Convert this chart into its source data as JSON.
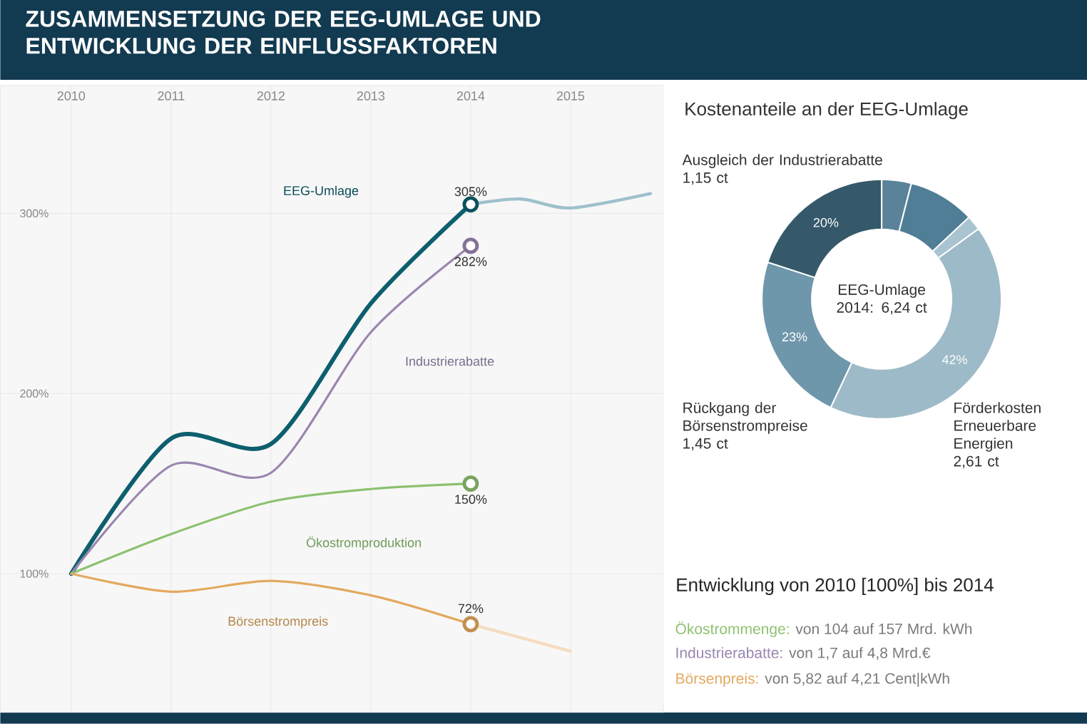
{
  "chart_data": [
    {
      "type": "line",
      "title": "ZUSAMMENSETZUNG DER EEG-UMLAGE UND ENTWICKLUNG DER EINFLUSSFAKTOREN",
      "xlim": [
        2009.29,
        2015.93
      ],
      "ylim": [
        23,
        371
      ],
      "xticks": [
        2010,
        2011,
        2012,
        2013,
        2014,
        2015
      ],
      "yticks": [
        {
          "value": 100,
          "label": "100%"
        },
        {
          "value": 200,
          "label": "200%"
        },
        {
          "value": 300,
          "label": "300%"
        }
      ],
      "grid": true,
      "legend": false,
      "series": [
        {
          "name": "EEG-Umlage",
          "color": "#0d5f6e",
          "x": [
            2010,
            2011,
            2012,
            2013,
            2014
          ],
          "values": [
            100,
            175,
            172,
            250,
            305
          ],
          "value_labels": [
            null,
            null,
            null,
            null,
            "305%"
          ]
        },
        {
          "name": "Industrierabatte",
          "color": "#9a86b0",
          "x": [
            2010,
            2011,
            2012,
            2013,
            2014
          ],
          "values": [
            100,
            160,
            156,
            234,
            282
          ],
          "value_labels": [
            null,
            null,
            null,
            null,
            "282%"
          ]
        },
        {
          "name": "Ökostromproduktion",
          "color": "#8cc16f",
          "x": [
            2010,
            2011,
            2012,
            2013,
            2014
          ],
          "values": [
            100,
            122,
            140,
            147,
            150
          ],
          "value_labels": [
            null,
            null,
            null,
            null,
            "150%"
          ]
        },
        {
          "name": "Börsenstrompreis",
          "color": "#e3a95e",
          "x": [
            2010,
            2011,
            2012,
            2013,
            2014
          ],
          "values": [
            100,
            90,
            96,
            88,
            72
          ],
          "value_labels": [
            null,
            null,
            null,
            null,
            "72%"
          ]
        },
        {
          "color": "#9dc0cc",
          "x": [
            2014,
            2014.5,
            2015,
            2015.8
          ],
          "values": [
            305,
            308,
            303,
            311
          ]
        },
        {
          "color": "#f5dcc0",
          "x": [
            2014,
            2015
          ],
          "values": [
            72,
            57
          ]
        }
      ]
    },
    {
      "type": "donut",
      "title": "Kostenanteile an der EEG-Umlage",
      "categories": [
        null,
        null,
        null,
        "Förderkosten Erneuerbare Energien 2,61 ct",
        "Rückgang der Börsenstrompreise 1,45 ct",
        "Ausgleich der Industrierabatte 1,15 ct"
      ],
      "values": [
        4,
        9,
        2,
        42,
        23,
        20
      ],
      "colors": [
        "#5a8399",
        "#4f7e96",
        "#a9c4d0",
        "#9dbac8",
        "#6f97ab",
        "#35596a"
      ],
      "value_labels": [
        null,
        null,
        null,
        "42%",
        "23%",
        "20%"
      ],
      "annotations": [
        "EEG-Umlage 2014: 6,24 ct"
      ]
    },
    {
      "type": "other",
      "title": "Entwicklung von 2010 [100%] bis 2014",
      "annotations": [
        "Ökostrommenge:",
        "von 104 auf 157 Mrd. kWh",
        "Industrierabatte:",
        "von 1,7 auf 4,8 Mrd.€",
        "Börsenpreis:",
        "von 5,82 auf 4,21 Cent|kWh"
      ]
    }
  ]
}
